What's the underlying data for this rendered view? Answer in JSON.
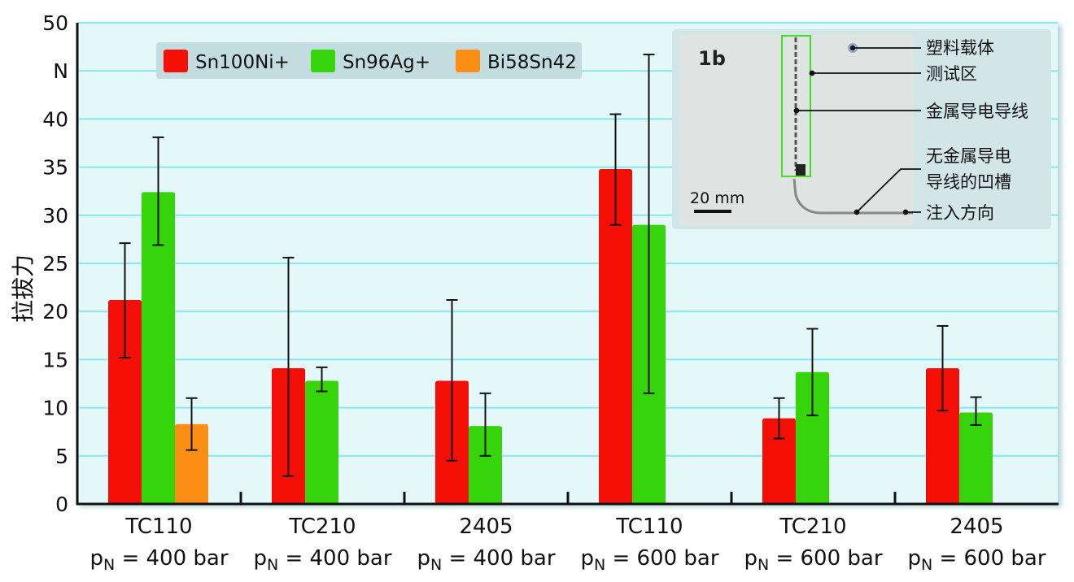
{
  "chart_data": {
    "type": "bar",
    "title": "",
    "ylabel": "拉拔力",
    "y_unit_label": "N",
    "ylim": [
      0,
      50
    ],
    "yticks": [
      "0",
      "5",
      "10",
      "15",
      "20",
      "25",
      "30",
      "35",
      "40",
      "N",
      "50"
    ],
    "grid": true,
    "categories": [
      {
        "line1": "TC110",
        "p": "p",
        "sub": "N",
        "rest": " = 400 bar"
      },
      {
        "line1": "TC210",
        "p": "p",
        "sub": "N",
        "rest": " = 400 bar"
      },
      {
        "line1": "2405",
        "p": "p",
        "sub": "N",
        "rest": " = 400 bar"
      },
      {
        "line1": "TC110",
        "p": "p",
        "sub": "N",
        "rest": " = 600 bar"
      },
      {
        "line1": "TC210",
        "p": "p",
        "sub": "N",
        "rest": " = 600 bar"
      },
      {
        "line1": "2405",
        "p": "p",
        "sub": "N",
        "rest": " = 600 bar"
      }
    ],
    "legend_position": "top-left",
    "series": [
      {
        "name": "Sn100Ni+",
        "color": "#f40f06",
        "values": [
          21.2,
          14.1,
          12.8,
          34.8,
          8.9,
          14.1
        ],
        "err_low": [
          15.2,
          2.9,
          4.5,
          29.0,
          6.8,
          9.7
        ],
        "err_high": [
          27.1,
          25.6,
          21.2,
          40.5,
          11.0,
          18.5
        ]
      },
      {
        "name": "Sn96Ag+",
        "color": "#36d40a",
        "values": [
          32.4,
          12.8,
          8.1,
          29.0,
          13.7,
          9.5
        ],
        "err_low": [
          26.9,
          11.7,
          5.0,
          11.5,
          9.2,
          8.2
        ],
        "err_high": [
          38.1,
          14.2,
          11.5,
          46.7,
          18.2,
          11.1
        ]
      },
      {
        "name": "Bi58Sn42",
        "color": "#fb8f16",
        "values": [
          8.3,
          null,
          null,
          null,
          null,
          null
        ],
        "err_low": [
          5.6,
          null,
          null,
          null,
          null,
          null
        ],
        "err_high": [
          11.0,
          null,
          null,
          null,
          null,
          null
        ]
      }
    ]
  },
  "inset": {
    "sample_label": "1b",
    "scale_bar": "20 mm",
    "labels": [
      "塑料载体",
      "测试区",
      "金属导电导线",
      "无金属导电",
      "导线的凹槽",
      "注入方向"
    ]
  }
}
